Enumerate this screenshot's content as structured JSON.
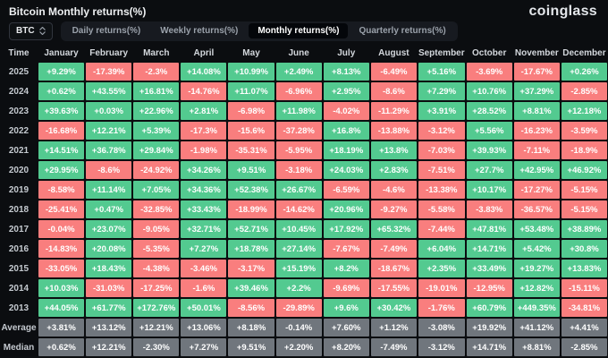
{
  "header": {
    "title": "Bitcoin Monthly returns(%)",
    "logo": "coinglass"
  },
  "controls": {
    "coin": "BTC",
    "coin_arrows_icon": "up-down-chevrons",
    "tabs": [
      "Daily returns(%)",
      "Weekly returns(%)",
      "Monthly returns(%)",
      "Quarterly returns(%)"
    ],
    "active_tab": "Monthly returns(%)",
    "active_index": 2
  },
  "colors": {
    "positive": "#53ca90",
    "negative": "#f97e7e",
    "neutral": "#70767d",
    "background": "#0b0d10"
  },
  "table": {
    "time_header": "Time",
    "months": [
      "January",
      "February",
      "March",
      "April",
      "May",
      "June",
      "July",
      "August",
      "September",
      "October",
      "November",
      "December"
    ],
    "rows": [
      {
        "label": "2025",
        "type": "year",
        "values": [
          "+9.29%",
          "-17.39%",
          "-2.3%",
          "+14.08%",
          "+10.99%",
          "+2.49%",
          "+8.13%",
          "-6.49%",
          "+5.16%",
          "-3.69%",
          "-17.67%",
          "+0.26%"
        ]
      },
      {
        "label": "2024",
        "type": "year",
        "values": [
          "+0.62%",
          "+43.55%",
          "+16.81%",
          "-14.76%",
          "+11.07%",
          "-6.96%",
          "+2.95%",
          "-8.6%",
          "+7.29%",
          "+10.76%",
          "+37.29%",
          "-2.85%"
        ]
      },
      {
        "label": "2023",
        "type": "year",
        "values": [
          "+39.63%",
          "+0.03%",
          "+22.96%",
          "+2.81%",
          "-6.98%",
          "+11.98%",
          "-4.02%",
          "-11.29%",
          "+3.91%",
          "+28.52%",
          "+8.81%",
          "+12.18%"
        ]
      },
      {
        "label": "2022",
        "type": "year",
        "values": [
          "-16.68%",
          "+12.21%",
          "+5.39%",
          "-17.3%",
          "-15.6%",
          "-37.28%",
          "+16.8%",
          "-13.88%",
          "-3.12%",
          "+5.56%",
          "-16.23%",
          "-3.59%"
        ]
      },
      {
        "label": "2021",
        "type": "year",
        "values": [
          "+14.51%",
          "+36.78%",
          "+29.84%",
          "-1.98%",
          "-35.31%",
          "-5.95%",
          "+18.19%",
          "+13.8%",
          "-7.03%",
          "+39.93%",
          "-7.11%",
          "-18.9%"
        ]
      },
      {
        "label": "2020",
        "type": "year",
        "values": [
          "+29.95%",
          "-8.6%",
          "-24.92%",
          "+34.26%",
          "+9.51%",
          "-3.18%",
          "+24.03%",
          "+2.83%",
          "-7.51%",
          "+27.7%",
          "+42.95%",
          "+46.92%"
        ]
      },
      {
        "label": "2019",
        "type": "year",
        "values": [
          "-8.58%",
          "+11.14%",
          "+7.05%",
          "+34.36%",
          "+52.38%",
          "+26.67%",
          "-6.59%",
          "-4.6%",
          "-13.38%",
          "+10.17%",
          "-17.27%",
          "-5.15%"
        ]
      },
      {
        "label": "2018",
        "type": "year",
        "values": [
          "-25.41%",
          "+0.47%",
          "-32.85%",
          "+33.43%",
          "-18.99%",
          "-14.62%",
          "+20.96%",
          "-9.27%",
          "-5.58%",
          "-3.83%",
          "-36.57%",
          "-5.15%"
        ]
      },
      {
        "label": "2017",
        "type": "year",
        "values": [
          "-0.04%",
          "+23.07%",
          "-9.05%",
          "+32.71%",
          "+52.71%",
          "+10.45%",
          "+17.92%",
          "+65.32%",
          "-7.44%",
          "+47.81%",
          "+53.48%",
          "+38.89%"
        ]
      },
      {
        "label": "2016",
        "type": "year",
        "values": [
          "-14.83%",
          "+20.08%",
          "-5.35%",
          "+7.27%",
          "+18.78%",
          "+27.14%",
          "-7.67%",
          "-7.49%",
          "+6.04%",
          "+14.71%",
          "+5.42%",
          "+30.8%"
        ]
      },
      {
        "label": "2015",
        "type": "year",
        "values": [
          "-33.05%",
          "+18.43%",
          "-4.38%",
          "-3.46%",
          "-3.17%",
          "+15.19%",
          "+8.2%",
          "-18.67%",
          "+2.35%",
          "+33.49%",
          "+19.27%",
          "+13.83%"
        ]
      },
      {
        "label": "2014",
        "type": "year",
        "values": [
          "+10.03%",
          "-31.03%",
          "-17.25%",
          "-1.6%",
          "+39.46%",
          "+2.2%",
          "-9.69%",
          "-17.55%",
          "-19.01%",
          "-12.95%",
          "+12.82%",
          "-15.11%"
        ]
      },
      {
        "label": "2013",
        "type": "year",
        "values": [
          "+44.05%",
          "+61.77%",
          "+172.76%",
          "+50.01%",
          "-8.56%",
          "-29.89%",
          "+9.6%",
          "+30.42%",
          "-1.76%",
          "+60.79%",
          "+449.35%",
          "-34.81%"
        ]
      },
      {
        "label": "Average",
        "type": "summary",
        "values": [
          "+3.81%",
          "+13.12%",
          "+12.21%",
          "+13.06%",
          "+8.18%",
          "-0.14%",
          "+7.60%",
          "+1.12%",
          "-3.08%",
          "+19.92%",
          "+41.12%",
          "+4.41%"
        ]
      },
      {
        "label": "Median",
        "type": "summary",
        "values": [
          "+0.62%",
          "+12.21%",
          "-2.30%",
          "+7.27%",
          "+9.51%",
          "+2.20%",
          "+8.20%",
          "-7.49%",
          "-3.12%",
          "+14.71%",
          "+8.81%",
          "-2.85%"
        ]
      }
    ]
  }
}
